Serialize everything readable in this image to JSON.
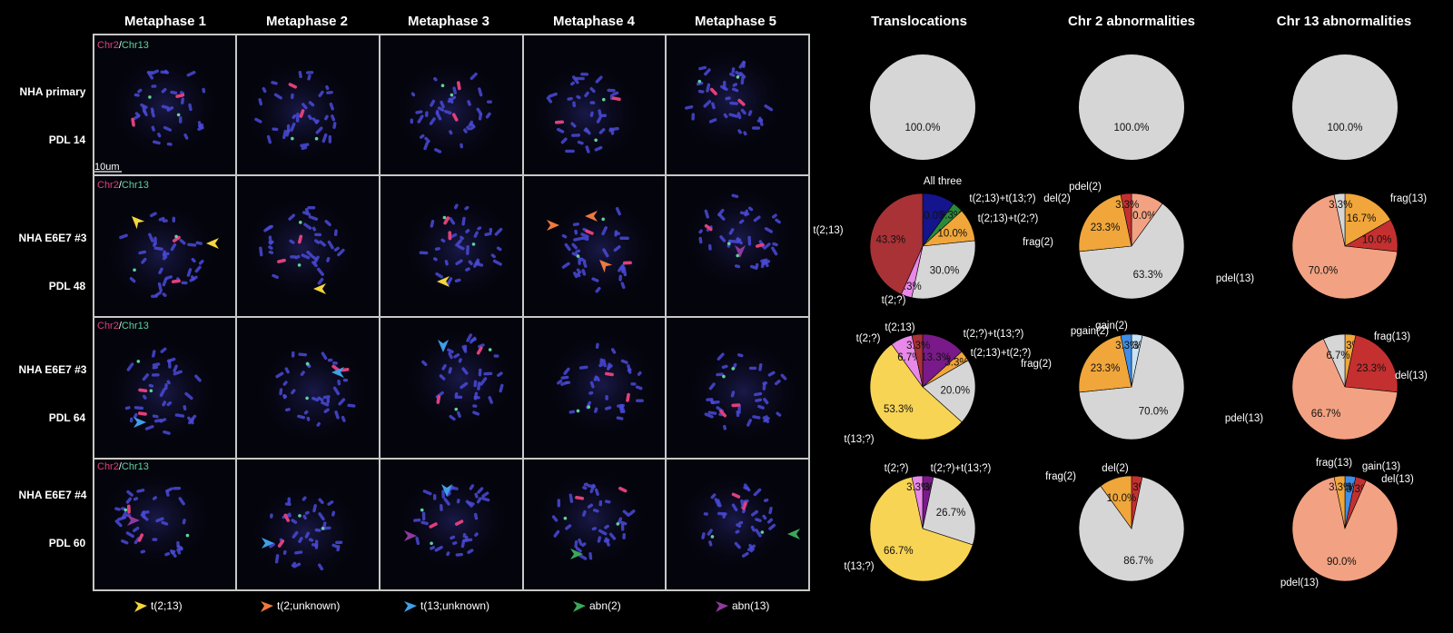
{
  "metaphase_headers": [
    "Metaphase 1",
    "Metaphase 2",
    "Metaphase 3",
    "Metaphase 4",
    "Metaphase 5"
  ],
  "pie_headers": [
    "Translocations",
    "Chr 2 abnormalities",
    "Chr 13 abnormalities"
  ],
  "rows": [
    {
      "line1": "NHA primary",
      "line2": "PDL 14"
    },
    {
      "line1": "NHA E6E7 #3",
      "line2": "PDL 48"
    },
    {
      "line1": "NHA E6E7 #3",
      "line2": "PDL 64"
    },
    {
      "line1": "NHA E6E7 #4",
      "line2": "PDL 60"
    }
  ],
  "chr_label": {
    "chr2": "Chr2",
    "slash": "/",
    "chr13": "Chr13",
    "chr2_color": "#e0407a",
    "chr13_color": "#5fd39a"
  },
  "scale_bar": "10um",
  "arrow_legend": [
    {
      "label": "t(2;13)",
      "color": "#f4d63c"
    },
    {
      "label": "t(2;unknown)",
      "color": "#ec7a3c"
    },
    {
      "label": "t(13;unknown)",
      "color": "#3ea0e8"
    },
    {
      "label": "abn(2)",
      "color": "#3aa85a"
    },
    {
      "label": "abn(13)",
      "color": "#8e3a9c"
    }
  ],
  "arrowheads": [
    {
      "row": 1,
      "col": 0,
      "dir": "upleft",
      "color": "#f4d63c"
    },
    {
      "row": 1,
      "col": 0,
      "dir": "left",
      "color": "#f4d63c"
    },
    {
      "row": 1,
      "col": 1,
      "dir": "left",
      "color": "#f4d63c"
    },
    {
      "row": 1,
      "col": 2,
      "dir": "left",
      "color": "#f4d63c"
    },
    {
      "row": 1,
      "col": 3,
      "dir": "right",
      "color": "#ec7a3c"
    },
    {
      "row": 1,
      "col": 3,
      "dir": "left",
      "color": "#ec7a3c"
    },
    {
      "row": 1,
      "col": 3,
      "dir": "upleft",
      "color": "#ec7a3c"
    },
    {
      "row": 1,
      "col": 4,
      "dir": "down",
      "color": "#8e3a9c"
    },
    {
      "row": 2,
      "col": 0,
      "dir": "right",
      "color": "#3ea0e8"
    },
    {
      "row": 2,
      "col": 1,
      "dir": "left",
      "color": "#3ea0e8"
    },
    {
      "row": 2,
      "col": 2,
      "dir": "down",
      "color": "#3ea0e8"
    },
    {
      "row": 3,
      "col": 0,
      "dir": "right",
      "color": "#8e3a9c"
    },
    {
      "row": 3,
      "col": 1,
      "dir": "right",
      "color": "#3ea0e8"
    },
    {
      "row": 3,
      "col": 2,
      "dir": "down",
      "color": "#3ea0e8"
    },
    {
      "row": 3,
      "col": 2,
      "dir": "right",
      "color": "#8e3a9c"
    },
    {
      "row": 3,
      "col": 3,
      "dir": "right",
      "color": "#3aa85a"
    },
    {
      "row": 3,
      "col": 4,
      "dir": "left",
      "color": "#3aa85a"
    }
  ],
  "chart_data": [
    {
      "type": "pie",
      "row": 0,
      "column": "Translocations",
      "slices": [
        {
          "label": "",
          "value": 100.0,
          "color": "#d6d6d6",
          "text": "100.0%"
        }
      ]
    },
    {
      "type": "pie",
      "row": 0,
      "column": "Chr 2 abnormalities",
      "slices": [
        {
          "label": "",
          "value": 100.0,
          "color": "#d6d6d6",
          "text": "100.0%"
        }
      ]
    },
    {
      "type": "pie",
      "row": 0,
      "column": "Chr 13 abnormalities",
      "slices": [
        {
          "label": "",
          "value": 100.0,
          "color": "#d6d6d6",
          "text": "100.0%"
        }
      ]
    },
    {
      "type": "pie",
      "row": 1,
      "column": "Translocations",
      "slices": [
        {
          "label": "All three",
          "value": 10.0,
          "color": "#14148c",
          "text": "10.0%"
        },
        {
          "label": "t(2;13)+t(13;?)",
          "value": 3.3,
          "color": "#2a8a3a",
          "text": "3.3%"
        },
        {
          "label": "t(2;13)+t(2;?)",
          "value": 10.0,
          "color": "#f0a63a",
          "text": "10.0%"
        },
        {
          "label": "",
          "value": 30.0,
          "color": "#d6d6d6",
          "text": "30.0%"
        },
        {
          "label": "t(2;?)",
          "value": 3.3,
          "color": "#e888e8",
          "text": "3.3%"
        },
        {
          "label": "t(2;13)",
          "value": 43.3,
          "color": "#a83236",
          "text": "43.3%"
        }
      ]
    },
    {
      "type": "pie",
      "row": 1,
      "column": "Chr 2 abnormalities",
      "slices": [
        {
          "label": "pdel(2)",
          "value": 10.0,
          "color": "#f2a282",
          "text": "10.0%"
        },
        {
          "label": "",
          "value": 63.3,
          "color": "#d6d6d6",
          "text": "63.3%"
        },
        {
          "label": "frag(2)",
          "value": 23.3,
          "color": "#f0a63a",
          "text": "23.3%"
        },
        {
          "label": "del(2)",
          "value": 3.3,
          "color": "#c43030",
          "text": "3.3%"
        }
      ]
    },
    {
      "type": "pie",
      "row": 1,
      "column": "Chr 13 abnormalities",
      "slices": [
        {
          "label": "frag(13)",
          "value": 16.7,
          "color": "#f0a63a",
          "text": "16.7%"
        },
        {
          "label": "del(13)",
          "value": 10.0,
          "color": "#c43030",
          "text": "10.0%"
        },
        {
          "label": "pdel(13)",
          "value": 70.0,
          "color": "#f2a282",
          "text": "70.0%"
        },
        {
          "label": "",
          "value": 3.3,
          "color": "#d6d6d6",
          "text": "3.3%"
        }
      ]
    },
    {
      "type": "pie",
      "row": 2,
      "column": "Translocations",
      "slices": [
        {
          "label": "t(2;?)+t(13;?)",
          "value": 13.3,
          "color": "#7a1a8a",
          "text": "13.3%"
        },
        {
          "label": "t(2;13)+t(2;?)",
          "value": 3.3,
          "color": "#f0a63a",
          "text": "3.3%"
        },
        {
          "label": "",
          "value": 20.0,
          "color": "#d6d6d6",
          "text": "20.0%"
        },
        {
          "label": "t(13;?)",
          "value": 53.3,
          "color": "#f8d454",
          "text": "53.3%"
        },
        {
          "label": "t(2;?)",
          "value": 6.7,
          "color": "#e888e8",
          "text": "6.7%"
        },
        {
          "label": "t(2;13)",
          "value": 3.3,
          "color": "#a83236",
          "text": "3.3%"
        }
      ]
    },
    {
      "type": "pie",
      "row": 2,
      "column": "Chr 2 abnormalities",
      "slices": [
        {
          "label": "pgain(2)",
          "value": 3.3,
          "color": "#c8e4f8",
          "text": "3.3%"
        },
        {
          "label": "",
          "value": 70.0,
          "color": "#d6d6d6",
          "text": "70.0%"
        },
        {
          "label": "frag(2)",
          "value": 23.3,
          "color": "#f0a63a",
          "text": "23.3%"
        },
        {
          "label": "gain(2)",
          "value": 3.3,
          "color": "#3e8ee8",
          "text": "3.3%"
        }
      ]
    },
    {
      "type": "pie",
      "row": 2,
      "column": "Chr 13 abnormalities",
      "slices": [
        {
          "label": "frag(13)",
          "value": 3.3,
          "color": "#f0a63a",
          "text": "3.3%"
        },
        {
          "label": "del(13)",
          "value": 23.3,
          "color": "#c43030",
          "text": "23.3%"
        },
        {
          "label": "pdel(13)",
          "value": 66.7,
          "color": "#f2a282",
          "text": "66.7%"
        },
        {
          "label": "",
          "value": 6.7,
          "color": "#d6d6d6",
          "text": "6.7%"
        }
      ]
    },
    {
      "type": "pie",
      "row": 3,
      "column": "Translocations",
      "slices": [
        {
          "label": "t(2;?)+t(13;?)",
          "value": 3.3,
          "color": "#7a1a8a",
          "text": "3.3%"
        },
        {
          "label": "",
          "value": 26.7,
          "color": "#d6d6d6",
          "text": "26.7%"
        },
        {
          "label": "t(13;?)",
          "value": 66.7,
          "color": "#f8d454",
          "text": "66.7%"
        },
        {
          "label": "t(2;?)",
          "value": 3.3,
          "color": "#e888e8",
          "text": "3.3%"
        }
      ]
    },
    {
      "type": "pie",
      "row": 3,
      "column": "Chr 2 abnormalities",
      "slices": [
        {
          "label": "del(2)",
          "value": 3.3,
          "color": "#c43030",
          "text": "3.3%"
        },
        {
          "label": "",
          "value": 86.7,
          "color": "#d6d6d6",
          "text": "86.7%"
        },
        {
          "label": "frag(2)",
          "value": 10.0,
          "color": "#f0a63a",
          "text": "10.0%"
        }
      ]
    },
    {
      "type": "pie",
      "row": 3,
      "column": "Chr 13 abnormalities",
      "slices": [
        {
          "label": "gain(13)",
          "value": 3.3,
          "color": "#3e8ee8",
          "text": "3.3%"
        },
        {
          "label": "del(13)",
          "value": 3.3,
          "color": "#c43030",
          "text": "3.3%"
        },
        {
          "label": "pdel(13)",
          "value": 90.0,
          "color": "#f2a282",
          "text": "90.0%"
        },
        {
          "label": "frag(13)",
          "value": 3.3,
          "color": "#f0a63a",
          "text": "3.3%"
        }
      ]
    }
  ]
}
